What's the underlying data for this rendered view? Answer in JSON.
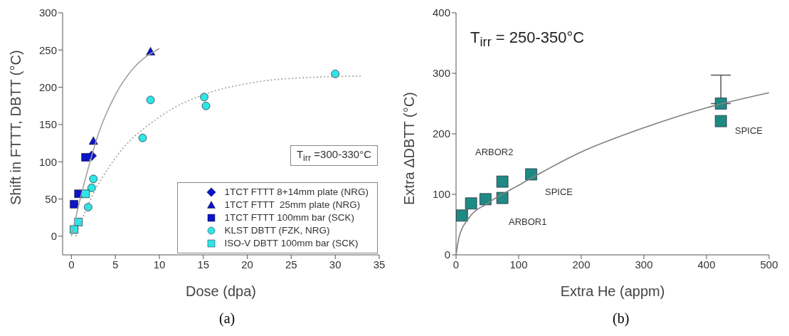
{
  "chart_data": [
    {
      "type": "scatter",
      "xlabel": "Dose (dpa)",
      "ylabel": "Shift in FTTT, DBTT (°C)",
      "xlim": [
        -1,
        35
      ],
      "xticks": [
        0,
        5,
        10,
        15,
        20,
        25,
        30,
        35
      ],
      "ylim": [
        -25,
        300
      ],
      "yticks": [
        0,
        50,
        100,
        150,
        200,
        250,
        300
      ],
      "legend": "bottom right",
      "annotations": [
        "T$_{irr}$ =300-330°C",
        "(a)"
      ],
      "series": [
        {
          "name": "1TCT FTTT 8+14mm plate (NRG)",
          "color": "#0a14c8",
          "marker": "diamond",
          "x": [
            2.3
          ],
          "values": [
            108
          ]
        },
        {
          "name": "1TCT FTTT  25mm plate (NRG)",
          "color": "#0a14c8",
          "marker": "triangle",
          "x": [
            9.0,
            2.5
          ],
          "values": [
            248,
            128
          ]
        },
        {
          "name": "1TCT FTTT 100mm bar (SCK)",
          "color": "#0a14c8",
          "marker": "square",
          "x": [
            1.6,
            0.8,
            0.3
          ],
          "values": [
            106,
            57,
            43
          ]
        },
        {
          "name": "KLST DBTT (FZK, NRG)",
          "color": "#2ee6e6",
          "marker": "circle",
          "x": [
            9.0,
            15.1,
            15.3,
            8.1,
            2.5,
            2.3,
            1.9,
            30
          ],
          "values": [
            183,
            187,
            175,
            132,
            77,
            65,
            39,
            218
          ]
        },
        {
          "name": "ISO-V DBTT 100mm bar (SCK)",
          "color": "#2ee6e6",
          "marker": "square",
          "x": [
            1.6,
            0.8,
            0.3
          ],
          "values": [
            57,
            19,
            9
          ]
        },
        {
          "type": "line",
          "color": "#a0a0a0",
          "line_style": "solid",
          "x": [
            0,
            1,
            2,
            3,
            5,
            7,
            10
          ],
          "values": [
            0,
            50,
            95,
            135,
            190,
            225,
            252
          ]
        },
        {
          "type": "line",
          "color": "#a0a0a0",
          "line_style": "dotted",
          "x": [
            0.5,
            2,
            5,
            10,
            15,
            20,
            25,
            33
          ],
          "values": [
            0,
            45,
            105,
            160,
            190,
            205,
            212,
            215
          ]
        }
      ]
    },
    {
      "type": "scatter",
      "xlabel": "Extra He (appm)",
      "ylabel": "Extra ΔDBTT (°C)",
      "xlim": [
        0,
        500
      ],
      "xticks": [
        0,
        100,
        200,
        300,
        400,
        500
      ],
      "ylim": [
        0,
        400
      ],
      "yticks": [
        0,
        100,
        200,
        300,
        400
      ],
      "annotations": [
        "T$_{irr}$ = 250-350°C",
        "(b)",
        "ARBOR2",
        "SPICE",
        "ARBOR1",
        "SPICE"
      ],
      "series": [
        {
          "color": "#1f8a84",
          "marker": "square",
          "x": [
            9.5,
            24,
            47,
            74,
            74,
            120,
            423,
            423
          ],
          "values": [
            65,
            85,
            92,
            121,
            94,
            133,
            250,
            221
          ],
          "errors": [
            null,
            null,
            null,
            null,
            null,
            null,
            [
              250,
              297
            ],
            null
          ]
        },
        {
          "type": "line",
          "color": "#808080",
          "line_style": "solid",
          "x": [
            0,
            5,
            20,
            50,
            100,
            200,
            300,
            400,
            500
          ],
          "values": [
            0,
            30,
            60,
            85,
            115,
            170,
            210,
            243,
            268
          ]
        }
      ]
    }
  ]
}
